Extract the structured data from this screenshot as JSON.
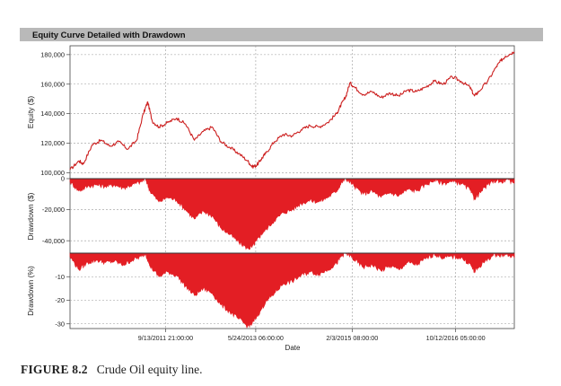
{
  "chart_data": {
    "type": "area",
    "title": "Equity Curve Detailed with Drawdown",
    "xlabel": "Date",
    "x_ticks": [
      "9/13/2011 21:00:00",
      "5/24/2013 06:00:00",
      "2/3/2015 08:00:00",
      "10/12/2016 05:00:00"
    ],
    "x_domain": [
      0,
      1
    ],
    "x_tick_positions": [
      0.215,
      0.418,
      0.635,
      0.868
    ],
    "panels": [
      {
        "name": "equity",
        "type": "line",
        "ylabel": "Equity ($)",
        "ylim": [
          96000,
          186000
        ],
        "yticks": [
          100000,
          120000,
          140000,
          160000,
          180000
        ],
        "ytick_labels": [
          "100,000",
          "120,000",
          "140,000",
          "160,000",
          "180,000"
        ],
        "color": "#cc1f1f",
        "x": [
          0,
          0.02,
          0.03,
          0.05,
          0.07,
          0.09,
          0.11,
          0.13,
          0.15,
          0.165,
          0.175,
          0.185,
          0.2,
          0.22,
          0.24,
          0.26,
          0.28,
          0.3,
          0.32,
          0.34,
          0.36,
          0.38,
          0.4,
          0.41,
          0.42,
          0.43,
          0.44,
          0.46,
          0.48,
          0.5,
          0.52,
          0.54,
          0.56,
          0.58,
          0.6,
          0.61,
          0.62,
          0.63,
          0.64,
          0.66,
          0.68,
          0.7,
          0.72,
          0.74,
          0.76,
          0.78,
          0.8,
          0.82,
          0.84,
          0.86,
          0.88,
          0.9,
          0.91,
          0.92,
          0.94,
          0.96,
          0.97,
          0.98,
          1.0
        ],
        "y": [
          102000,
          108000,
          106000,
          119000,
          122000,
          118000,
          121000,
          116000,
          122000,
          140000,
          148000,
          135000,
          131000,
          134000,
          137000,
          133000,
          122000,
          128000,
          131000,
          121000,
          117000,
          113000,
          108000,
          104000,
          105000,
          109000,
          113000,
          121000,
          126000,
          125000,
          129000,
          132000,
          131000,
          134000,
          140000,
          146000,
          151000,
          161000,
          158000,
          153000,
          155000,
          151000,
          154000,
          152000,
          156000,
          155000,
          158000,
          162000,
          160000,
          165000,
          162000,
          158000,
          152000,
          155000,
          162000,
          172000,
          176000,
          179000,
          182000
        ]
      },
      {
        "name": "drawdown_usd",
        "type": "area",
        "ylabel": "Drawdown ($)",
        "ylim": [
          -48000,
          0
        ],
        "yticks": [
          0,
          -20000,
          -40000
        ],
        "ytick_labels": [
          "0",
          "-20,000",
          "-40,000"
        ],
        "color": "#e31e24",
        "x": [
          0,
          0.02,
          0.04,
          0.06,
          0.08,
          0.1,
          0.12,
          0.14,
          0.16,
          0.17,
          0.18,
          0.2,
          0.22,
          0.24,
          0.26,
          0.28,
          0.3,
          0.32,
          0.34,
          0.36,
          0.38,
          0.4,
          0.41,
          0.42,
          0.43,
          0.44,
          0.46,
          0.48,
          0.5,
          0.52,
          0.54,
          0.56,
          0.58,
          0.6,
          0.61,
          0.62,
          0.63,
          0.64,
          0.66,
          0.68,
          0.7,
          0.72,
          0.74,
          0.76,
          0.78,
          0.8,
          0.82,
          0.84,
          0.86,
          0.88,
          0.9,
          0.91,
          0.92,
          0.94,
          0.96,
          0.97,
          0.98,
          1.0
        ],
        "y": [
          -2000,
          -8000,
          -5000,
          -4000,
          -5000,
          -4000,
          -6000,
          -4000,
          -2000,
          0,
          -8000,
          -15000,
          -12000,
          -14000,
          -20000,
          -26000,
          -21000,
          -24000,
          -32000,
          -36000,
          -41000,
          -45000,
          -44000,
          -40000,
          -36000,
          -33000,
          -27000,
          -22000,
          -20000,
          -16000,
          -14000,
          -15000,
          -12000,
          -8000,
          -3000,
          0,
          -2000,
          -5000,
          -10000,
          -8000,
          -12000,
          -9000,
          -11000,
          -7000,
          -8000,
          -4000,
          -1000,
          -3000,
          -2000,
          -3000,
          -7000,
          -13000,
          -10000,
          -4000,
          -1000,
          -2000,
          -1000,
          -3000
        ]
      },
      {
        "name": "drawdown_pct",
        "type": "area",
        "ylabel": "Drawdown (%)",
        "ylim": [
          -32,
          0
        ],
        "yticks": [
          -10,
          -20,
          -30
        ],
        "ytick_labels": [
          "-10",
          "-20",
          "-30"
        ],
        "color": "#e31e24",
        "x": [
          0,
          0.02,
          0.04,
          0.06,
          0.08,
          0.1,
          0.12,
          0.14,
          0.16,
          0.17,
          0.18,
          0.2,
          0.22,
          0.24,
          0.26,
          0.28,
          0.3,
          0.32,
          0.34,
          0.36,
          0.38,
          0.4,
          0.41,
          0.42,
          0.43,
          0.44,
          0.46,
          0.48,
          0.5,
          0.52,
          0.54,
          0.56,
          0.58,
          0.6,
          0.61,
          0.62,
          0.63,
          0.64,
          0.66,
          0.68,
          0.7,
          0.72,
          0.74,
          0.76,
          0.78,
          0.8,
          0.82,
          0.84,
          0.86,
          0.88,
          0.9,
          0.91,
          0.92,
          0.94,
          0.96,
          0.97,
          0.98,
          1.0
        ],
        "y": [
          -1.5,
          -7,
          -4,
          -3,
          -4,
          -3.5,
          -5,
          -3,
          -1.5,
          0,
          -5.5,
          -10,
          -8,
          -9.5,
          -14,
          -18,
          -15,
          -17,
          -22,
          -25,
          -28,
          -31,
          -30,
          -27,
          -24,
          -21,
          -17,
          -13,
          -12,
          -9.5,
          -8,
          -9,
          -7,
          -4.5,
          -1.5,
          0,
          -1,
          -3,
          -6,
          -5,
          -7.5,
          -5.5,
          -7,
          -4,
          -5,
          -2.5,
          -0.5,
          -2,
          -1.5,
          -2,
          -4.5,
          -8,
          -6,
          -2.5,
          -0.5,
          -1,
          -0.5,
          -2
        ]
      }
    ],
    "grid": true,
    "legend": "none"
  },
  "caption": {
    "label": "FIGURE 8.2",
    "text": "Crude Oil equity line."
  }
}
